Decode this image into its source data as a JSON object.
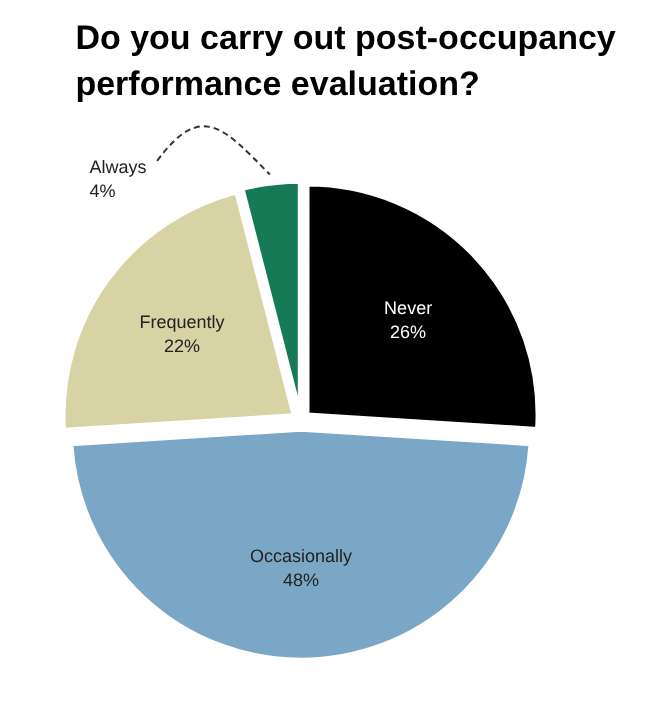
{
  "chart_data": {
    "type": "pie",
    "title": "Do you carry out post-occupancy\nperformance evaluation?",
    "categories": [
      "Never",
      "Occasionally",
      "Frequently",
      "Always"
    ],
    "values": [
      26,
      48,
      22,
      4
    ],
    "colors": [
      "#000000",
      "#7ba7c7",
      "#d8d3a5",
      "#177a57"
    ],
    "value_labels": [
      "26%",
      "48%",
      "22%",
      "4%"
    ]
  }
}
